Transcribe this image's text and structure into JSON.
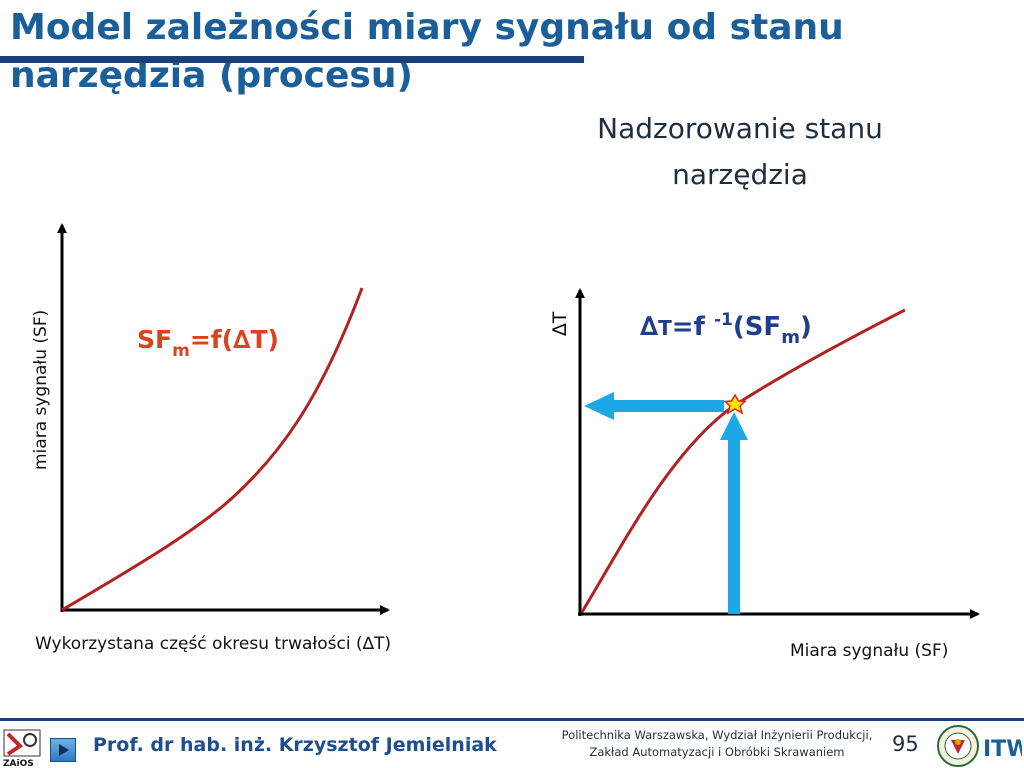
{
  "slide": {
    "title": "Model zależności miary sygnału od stanu narzędzia (procesu)",
    "subtitle_line1": "Nadzorowanie stanu",
    "subtitle_line2": "narzędzia"
  },
  "left_chart": {
    "y_axis_label": "miara sygnału (SF)",
    "x_axis_label": "Wykorzystana część okresu trwałości (∆T)",
    "formula": {
      "main": "SF",
      "sub": "m",
      "rest": "=f(∆T)"
    }
  },
  "right_chart": {
    "y_axis_label": "∆T",
    "x_axis_label": "Miara sygnału (SF)",
    "formula": {
      "delta": "∆",
      "t": "T",
      "mid": "=f ",
      "sup": "-1",
      "paren_open": "(SF",
      "sub": "m",
      "paren_close": ")"
    }
  },
  "footer": {
    "author": "Prof. dr hab. inż. Krzysztof Jemielniak",
    "institution_line1": "Politechnika Warszawska, Wydział Inżynierii Produkcji,",
    "institution_line2": "Zakład Automatyzacji i Obróbki Skrawaniem",
    "page_number": "95",
    "logo_left_text": "ZAiOS",
    "logo_right_text": "ITW"
  },
  "colors": {
    "title": "#1a5e9a",
    "curve": "#b22222",
    "formula_left": "#d9431e",
    "formula_right": "#1f3f8a",
    "arrow": "#1ea7e6",
    "axis": "#000000"
  }
}
